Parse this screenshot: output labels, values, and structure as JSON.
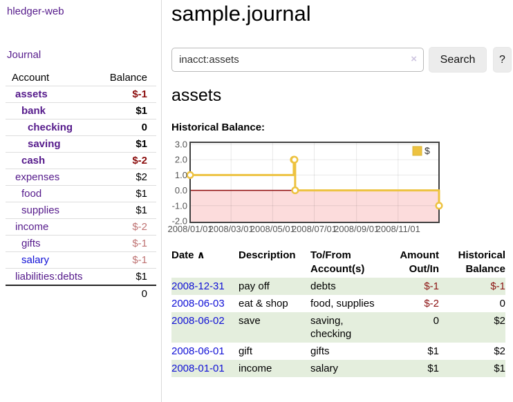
{
  "app": {
    "title": "hledger-web",
    "nav_journal": "Journal"
  },
  "sidebar": {
    "header": {
      "account": "Account",
      "balance": "Balance"
    },
    "accounts": [
      {
        "name": "assets",
        "indent": 1,
        "bold": true,
        "name_color": "purple",
        "balance": "$-1",
        "neg": "strong"
      },
      {
        "name": "bank",
        "indent": 2,
        "bold": true,
        "name_color": "purple",
        "balance": "$1"
      },
      {
        "name": "checking",
        "indent": 3,
        "bold": true,
        "name_color": "purple",
        "balance": "0"
      },
      {
        "name": "saving",
        "indent": 3,
        "bold": true,
        "name_color": "purple",
        "balance": "$1"
      },
      {
        "name": "cash",
        "indent": 2,
        "bold": true,
        "name_color": "purple",
        "balance": "$-2",
        "neg": "strong"
      },
      {
        "name": "expenses",
        "indent": 1,
        "bold": false,
        "name_color": "purple",
        "balance": "$2"
      },
      {
        "name": "food",
        "indent": 2,
        "bold": false,
        "name_color": "purple",
        "balance": "$1"
      },
      {
        "name": "supplies",
        "indent": 2,
        "bold": false,
        "name_color": "purple",
        "balance": "$1"
      },
      {
        "name": "income",
        "indent": 1,
        "bold": false,
        "name_color": "purple",
        "balance": "$-2",
        "neg": "dim"
      },
      {
        "name": "gifts",
        "indent": 2,
        "bold": false,
        "name_color": "purple",
        "balance": "$-1",
        "neg": "dim"
      },
      {
        "name": "salary",
        "indent": 2,
        "bold": false,
        "name_color": "blue",
        "balance": "$-1",
        "neg": "dim"
      },
      {
        "name": "liabilities:debts",
        "indent": 1,
        "bold": false,
        "name_color": "purple",
        "balance": "$1"
      }
    ],
    "total": "0"
  },
  "header": {
    "title": "sample.journal"
  },
  "search": {
    "value": "inacct:assets",
    "clear_label": "×",
    "button": "Search",
    "help": "?"
  },
  "main": {
    "account_title": "assets",
    "chart_label": "Historical Balance:"
  },
  "chart_data": {
    "type": "line",
    "step": true,
    "title": "Historical Balance:",
    "series": [
      {
        "name": "$",
        "color": "#edc240",
        "points": [
          [
            "2008-01-01",
            1.0
          ],
          [
            "2008-06-01",
            2.0
          ],
          [
            "2008-06-02",
            2.0
          ],
          [
            "2008-06-03",
            0.0
          ],
          [
            "2008-12-31",
            -1.0
          ]
        ]
      }
    ],
    "xlim": [
      "2008-01-01",
      "2008-12-31"
    ],
    "ylim": [
      -2.0,
      3.0
    ],
    "yticks": [
      {
        "v": 3.0,
        "label": "3.0"
      },
      {
        "v": 2.0,
        "label": "2.0"
      },
      {
        "v": 1.0,
        "label": "1.0"
      },
      {
        "v": 0.0,
        "label": "0.0"
      },
      {
        "v": -1.0,
        "label": "-1.0"
      },
      {
        "v": -2.0,
        "label": "-2.0"
      }
    ],
    "xticks": [
      {
        "date": "2008-01-01",
        "label": "2008/01/01"
      },
      {
        "date": "2008-03-01",
        "label": "2008/03/01"
      },
      {
        "date": "2008-05-01",
        "label": "2008/05/01"
      },
      {
        "date": "2008-07-01",
        "label": "2008/07/01"
      },
      {
        "date": "2008-09-01",
        "label": "2008/09/01"
      },
      {
        "date": "2008-11-01",
        "label": "2008/11/01"
      }
    ],
    "grid": true,
    "legend_position": "top-right",
    "tick_color": "#545454",
    "negative_region_color": "#fcdcdc",
    "zero_line_color": "#8e0b0b",
    "border_color": "#3f3f3f"
  },
  "register": {
    "sort_arrow": "∧",
    "columns": [
      {
        "label": "Date",
        "align": "left",
        "sorted": true
      },
      {
        "label": "Description",
        "align": "left"
      },
      {
        "label": "To/From Account(s)",
        "align": "left"
      },
      {
        "label": "Amount Out/In",
        "align": "right"
      },
      {
        "label": "Historical Balance",
        "align": "right"
      }
    ],
    "rows": [
      {
        "date": "2008-12-31",
        "description": "pay off",
        "accounts": "debts",
        "amount": "$-1",
        "balance": "$-1",
        "green": true
      },
      {
        "date": "2008-06-03",
        "description": "eat & shop",
        "accounts": "food, supplies",
        "amount": "$-2",
        "balance": "0",
        "green": false
      },
      {
        "date": "2008-06-02",
        "description": "save",
        "accounts": "saving, checking",
        "amount": "0",
        "balance": "$2",
        "green": true
      },
      {
        "date": "2008-06-01",
        "description": "gift",
        "accounts": "gifts",
        "amount": "$1",
        "balance": "$2",
        "green": false
      },
      {
        "date": "2008-01-01",
        "description": "income",
        "accounts": "salary",
        "amount": "$1",
        "balance": "$1",
        "green": true
      }
    ]
  }
}
